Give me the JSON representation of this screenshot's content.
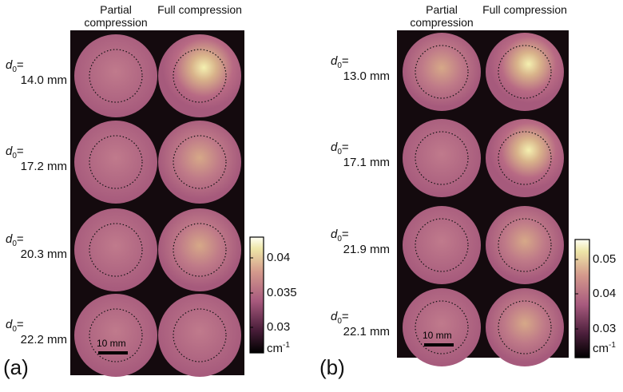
{
  "panels": [
    {
      "label": "(a)",
      "column_headers": [
        "Partial compression",
        "Full compression"
      ],
      "symbol": "d",
      "symbol_subscript": "0",
      "symbol_suffix": "=",
      "rows": [
        "14.0 mm",
        "17.2 mm",
        "20.3 mm",
        "22.2 mm"
      ],
      "scale_bar": "10 mm",
      "colorbar_ticks": [
        "0.04",
        "0.035",
        "0.03"
      ],
      "colorbar_unit": "cm",
      "colorbar_unit_exponent": "-1"
    },
    {
      "label": "(b)",
      "column_headers": [
        "Partial compression",
        "Full compression"
      ],
      "symbol": "d",
      "symbol_subscript": "0",
      "symbol_suffix": "=",
      "rows": [
        "13.0 mm",
        "17.1 mm",
        "21.9 mm",
        "22.1 mm"
      ],
      "scale_bar": "10 mm",
      "colorbar_ticks": [
        "0.05",
        "0.04",
        "0.03"
      ],
      "colorbar_unit": "cm",
      "colorbar_unit_exponent": "-1"
    }
  ]
}
